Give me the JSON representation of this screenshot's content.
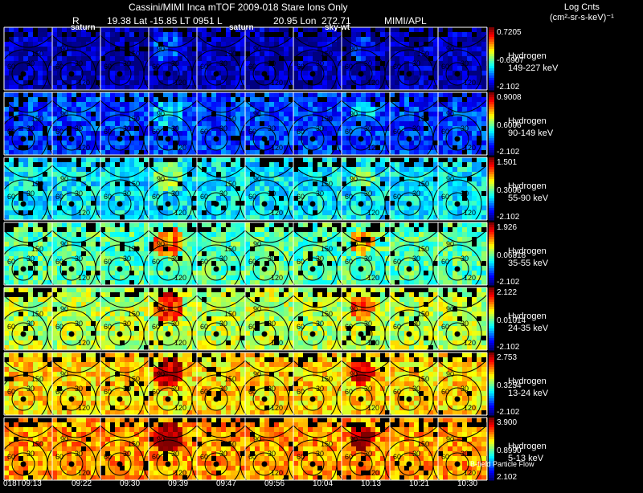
{
  "header": {
    "title": "Cassini/MIMI Inca mTOF  2009-018   Stare    Ions Only",
    "r_label": "R",
    "lat_lt": "19.38 Lat -15.85 LT 0951 L",
    "lon": "20.95 Lon",
    "alt": "272.71",
    "mimi": "MIMI/APL",
    "units_line1": "Log Cnts",
    "units_line2": "(cm²-sr-s-keV)⁻¹"
  },
  "top_labels": [
    "saturn",
    "saturn",
    "sky-wt"
  ],
  "contour_values": [
    "30",
    "60",
    "90",
    "120",
    "150"
  ],
  "bands": [
    {
      "species": "Hydrogen",
      "range": "149-227 keV",
      "max": "0.7205",
      "mid": "-0.6907",
      "min": "-2.102",
      "level": 0.05
    },
    {
      "species": "Hydrogen",
      "range": "90-149 keV",
      "max": "0.9008",
      "mid": "0.6006",
      "min": "-2.102",
      "level": 0.18
    },
    {
      "species": "Hydrogen",
      "range": "55-90 keV",
      "max": "1.501",
      "mid": "0.3006",
      "min": "-2.102",
      "level": 0.36
    },
    {
      "species": "Hydrogen",
      "range": "35-55 keV",
      "max": "1.926",
      "mid": "0.06818",
      "min": "-2.102",
      "level": 0.46
    },
    {
      "species": "Hydrogen",
      "range": "24-35 keV",
      "max": "2.122",
      "mid": "0.01014",
      "min": "-2.102",
      "level": 0.56
    },
    {
      "species": "Hydrogen",
      "range": "13-24 keV",
      "max": "2.753",
      "mid": "0.3254",
      "min": "-2.102",
      "level": 0.66
    },
    {
      "species": "Hydrogen",
      "range": "5-13 keV",
      "max": "3.900",
      "mid": "0.8990",
      "min": "2.102",
      "level": 0.72
    }
  ],
  "times": [
    "018T09:13",
    "09:22",
    "09:30",
    "09:39",
    "09:47",
    "09:56",
    "10:04",
    "10:13",
    "10:21",
    "10:30"
  ],
  "bfield_label": "B-field Particle Flow",
  "colors": {
    "background": "#000000",
    "grid": "#ffffff",
    "contour": "#000000"
  }
}
